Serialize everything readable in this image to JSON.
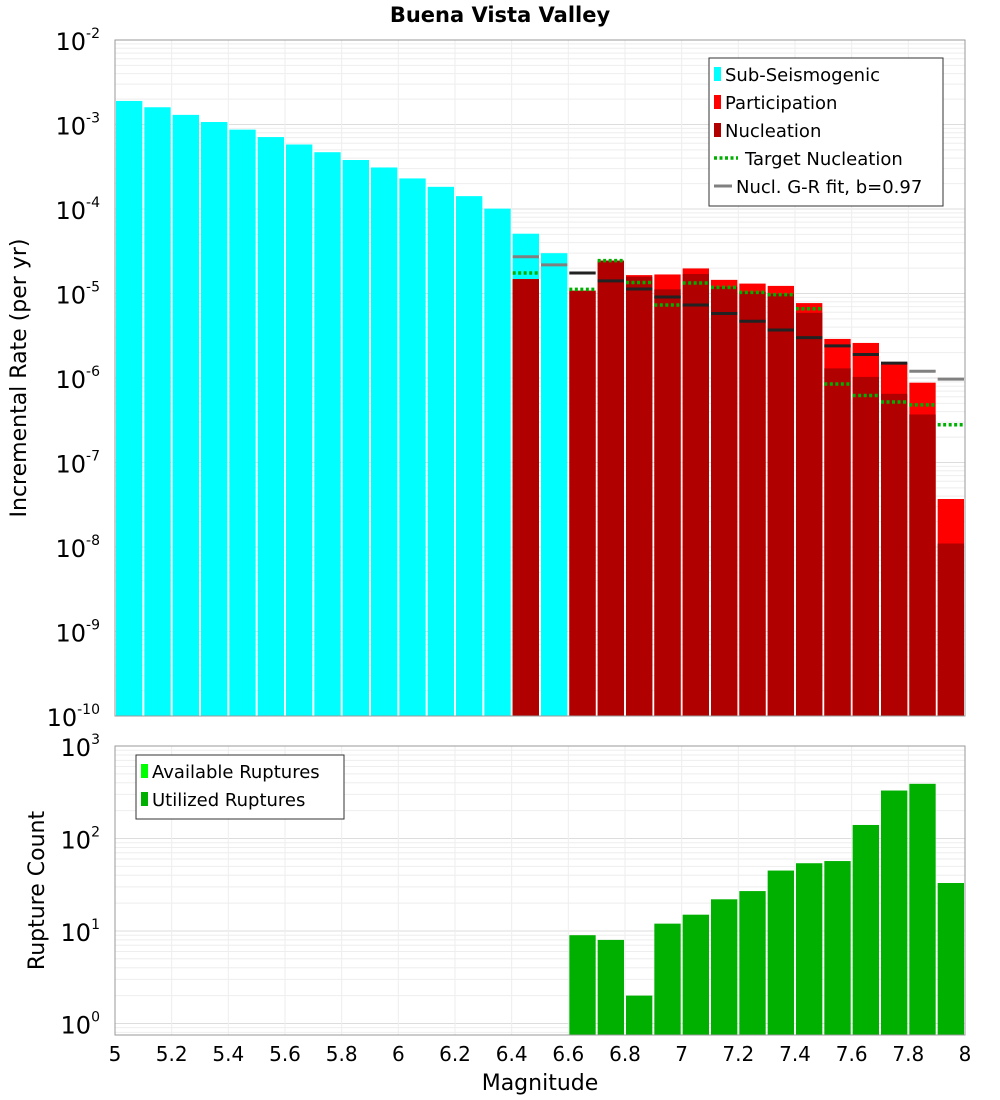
{
  "chart_data": [
    {
      "type": "bar",
      "title": "Buena Vista Valley",
      "ylabel": "Incremental Rate (per yr)",
      "xlabel": "",
      "yscale": "log",
      "ylim": [
        1e-10,
        0.01
      ],
      "xlim": [
        5,
        8
      ],
      "grid": true,
      "legend_position": "top-right",
      "y_ticks": [
        {
          "base": "10",
          "exp": "-2",
          "value": 0.01
        },
        {
          "base": "10",
          "exp": "-3",
          "value": 0.001
        },
        {
          "base": "10",
          "exp": "-4",
          "value": 0.0001
        },
        {
          "base": "10",
          "exp": "-5",
          "value": 1e-05
        },
        {
          "base": "10",
          "exp": "-6",
          "value": 1e-06
        },
        {
          "base": "10",
          "exp": "-7",
          "value": 1e-07
        },
        {
          "base": "10",
          "exp": "-8",
          "value": 1e-08
        },
        {
          "base": "10",
          "exp": "-9",
          "value": 1e-09
        },
        {
          "base": "10",
          "exp": "-10",
          "value": 1e-10
        }
      ],
      "legend": [
        {
          "label": "Sub-Seismogenic",
          "color": "#00ffff",
          "style": "box"
        },
        {
          "label": "Participation",
          "color": "#ff0000",
          "style": "box"
        },
        {
          "label": "Nucleation",
          "color": "#b00000",
          "style": "box"
        },
        {
          "label": "Target Nucleation",
          "color": "#00b000",
          "style": "dotted"
        },
        {
          "label": "Nucl. G-R fit, b=0.97",
          "color": "#808080",
          "style": "solid"
        }
      ],
      "series": [
        {
          "name": "Sub-Seismogenic",
          "color": "#00ffff",
          "x": [
            5.05,
            5.15,
            5.25,
            5.35,
            5.45,
            5.55,
            5.65,
            5.75,
            5.85,
            5.95,
            6.05,
            6.15,
            6.25,
            6.35,
            6.45,
            6.55
          ],
          "values": [
            0.0019,
            0.0016,
            0.0013,
            0.00107,
            0.00087,
            0.00071,
            0.00058,
            0.00047,
            0.00038,
            0.00031,
            0.00023,
            0.000183,
            0.000142,
            0.000101,
            5.1e-05,
            3e-05
          ]
        },
        {
          "name": "Participation",
          "color": "#ff0000",
          "x": [
            6.45,
            6.65,
            6.75,
            6.85,
            6.95,
            7.05,
            7.15,
            7.25,
            7.35,
            7.45,
            7.55,
            7.65,
            7.75,
            7.85,
            7.95
          ],
          "values": [
            1.48e-05,
            1.08e-05,
            2.45e-05,
            1.65e-05,
            1.68e-05,
            1.98e-05,
            1.45e-05,
            1.31e-05,
            1.23e-05,
            7.7e-06,
            2.9e-06,
            2.6e-06,
            1.5e-06,
            8.8e-07,
            3.7e-08
          ]
        },
        {
          "name": "Nucleation",
          "color": "#b00000",
          "x": [
            6.45,
            6.65,
            6.75,
            6.85,
            6.95,
            7.05,
            7.15,
            7.25,
            7.35,
            7.45,
            7.55,
            7.65,
            7.75,
            7.85,
            7.95
          ],
          "values": [
            1.48e-05,
            1.08e-05,
            2.45e-05,
            1.58e-05,
            1.12e-05,
            1.7e-05,
            1.2e-05,
            1.05e-05,
            9.9e-06,
            5.9e-06,
            1.3e-06,
            1.03e-06,
            6.5e-07,
            3.7e-07,
            1.1e-08
          ]
        },
        {
          "name": "Target Nucleation",
          "color": "#00b000",
          "x": [
            6.45,
            6.65,
            6.75,
            6.85,
            6.95,
            7.05,
            7.15,
            7.25,
            7.35,
            7.45,
            7.55,
            7.65,
            7.75,
            7.85,
            7.95
          ],
          "values": [
            1.75e-05,
            1.12e-05,
            2.45e-05,
            1.35e-05,
            7.3e-06,
            1.33e-05,
            1.18e-05,
            1.03e-05,
            9.7e-06,
            6.6e-06,
            8.5e-07,
            6.2e-07,
            5.2e-07,
            4.8e-07,
            2.8e-07
          ]
        },
        {
          "name": "Nucl. G-R fit, b=0.97",
          "color": "#808080",
          "x": [
            6.45,
            6.55,
            6.65,
            6.75,
            6.85,
            6.95,
            7.05,
            7.15,
            7.25,
            7.35,
            7.45,
            7.55,
            7.65,
            7.75,
            7.85,
            7.95
          ],
          "values": [
            2.72e-05,
            2.18e-05,
            1.75e-05,
            1.41e-05,
            1.13e-05,
            9.1e-06,
            7.3e-06,
            5.8e-06,
            4.7e-06,
            3.7e-06,
            3e-06,
            2.4e-06,
            1.9e-06,
            1.5e-06,
            1.2e-06,
            9.7e-07
          ]
        }
      ]
    },
    {
      "type": "bar",
      "title": "",
      "ylabel": "Rupture Count",
      "xlabel": "Magnitude",
      "yscale": "log",
      "ylim": [
        0.75,
        1000
      ],
      "xlim": [
        5,
        8
      ],
      "grid": true,
      "legend_position": "top-left",
      "x_ticks": [
        "5",
        "5.2",
        "5.4",
        "5.6",
        "5.8",
        "6",
        "6.2",
        "6.4",
        "6.6",
        "6.8",
        "7",
        "7.2",
        "7.4",
        "7.6",
        "7.8",
        "8"
      ],
      "y_ticks": [
        {
          "base": "10",
          "exp": "3",
          "value": 1000
        },
        {
          "base": "10",
          "exp": "2",
          "value": 100
        },
        {
          "base": "10",
          "exp": "1",
          "value": 10
        },
        {
          "base": "10",
          "exp": "0",
          "value": 1
        }
      ],
      "legend": [
        {
          "label": "Available Ruptures",
          "color": "#00ff00",
          "style": "box"
        },
        {
          "label": "Utilized Ruptures",
          "color": "#00b000",
          "style": "box"
        }
      ],
      "series": [
        {
          "name": "Utilized Ruptures",
          "color": "#00b000",
          "x": [
            6.65,
            6.75,
            6.85,
            6.95,
            7.05,
            7.15,
            7.25,
            7.35,
            7.45,
            7.55,
            7.65,
            7.75,
            7.85,
            7.95
          ],
          "values": [
            9,
            8,
            2,
            12,
            15,
            22,
            27,
            45,
            54,
            57,
            140,
            330,
            390,
            33
          ]
        }
      ]
    }
  ]
}
